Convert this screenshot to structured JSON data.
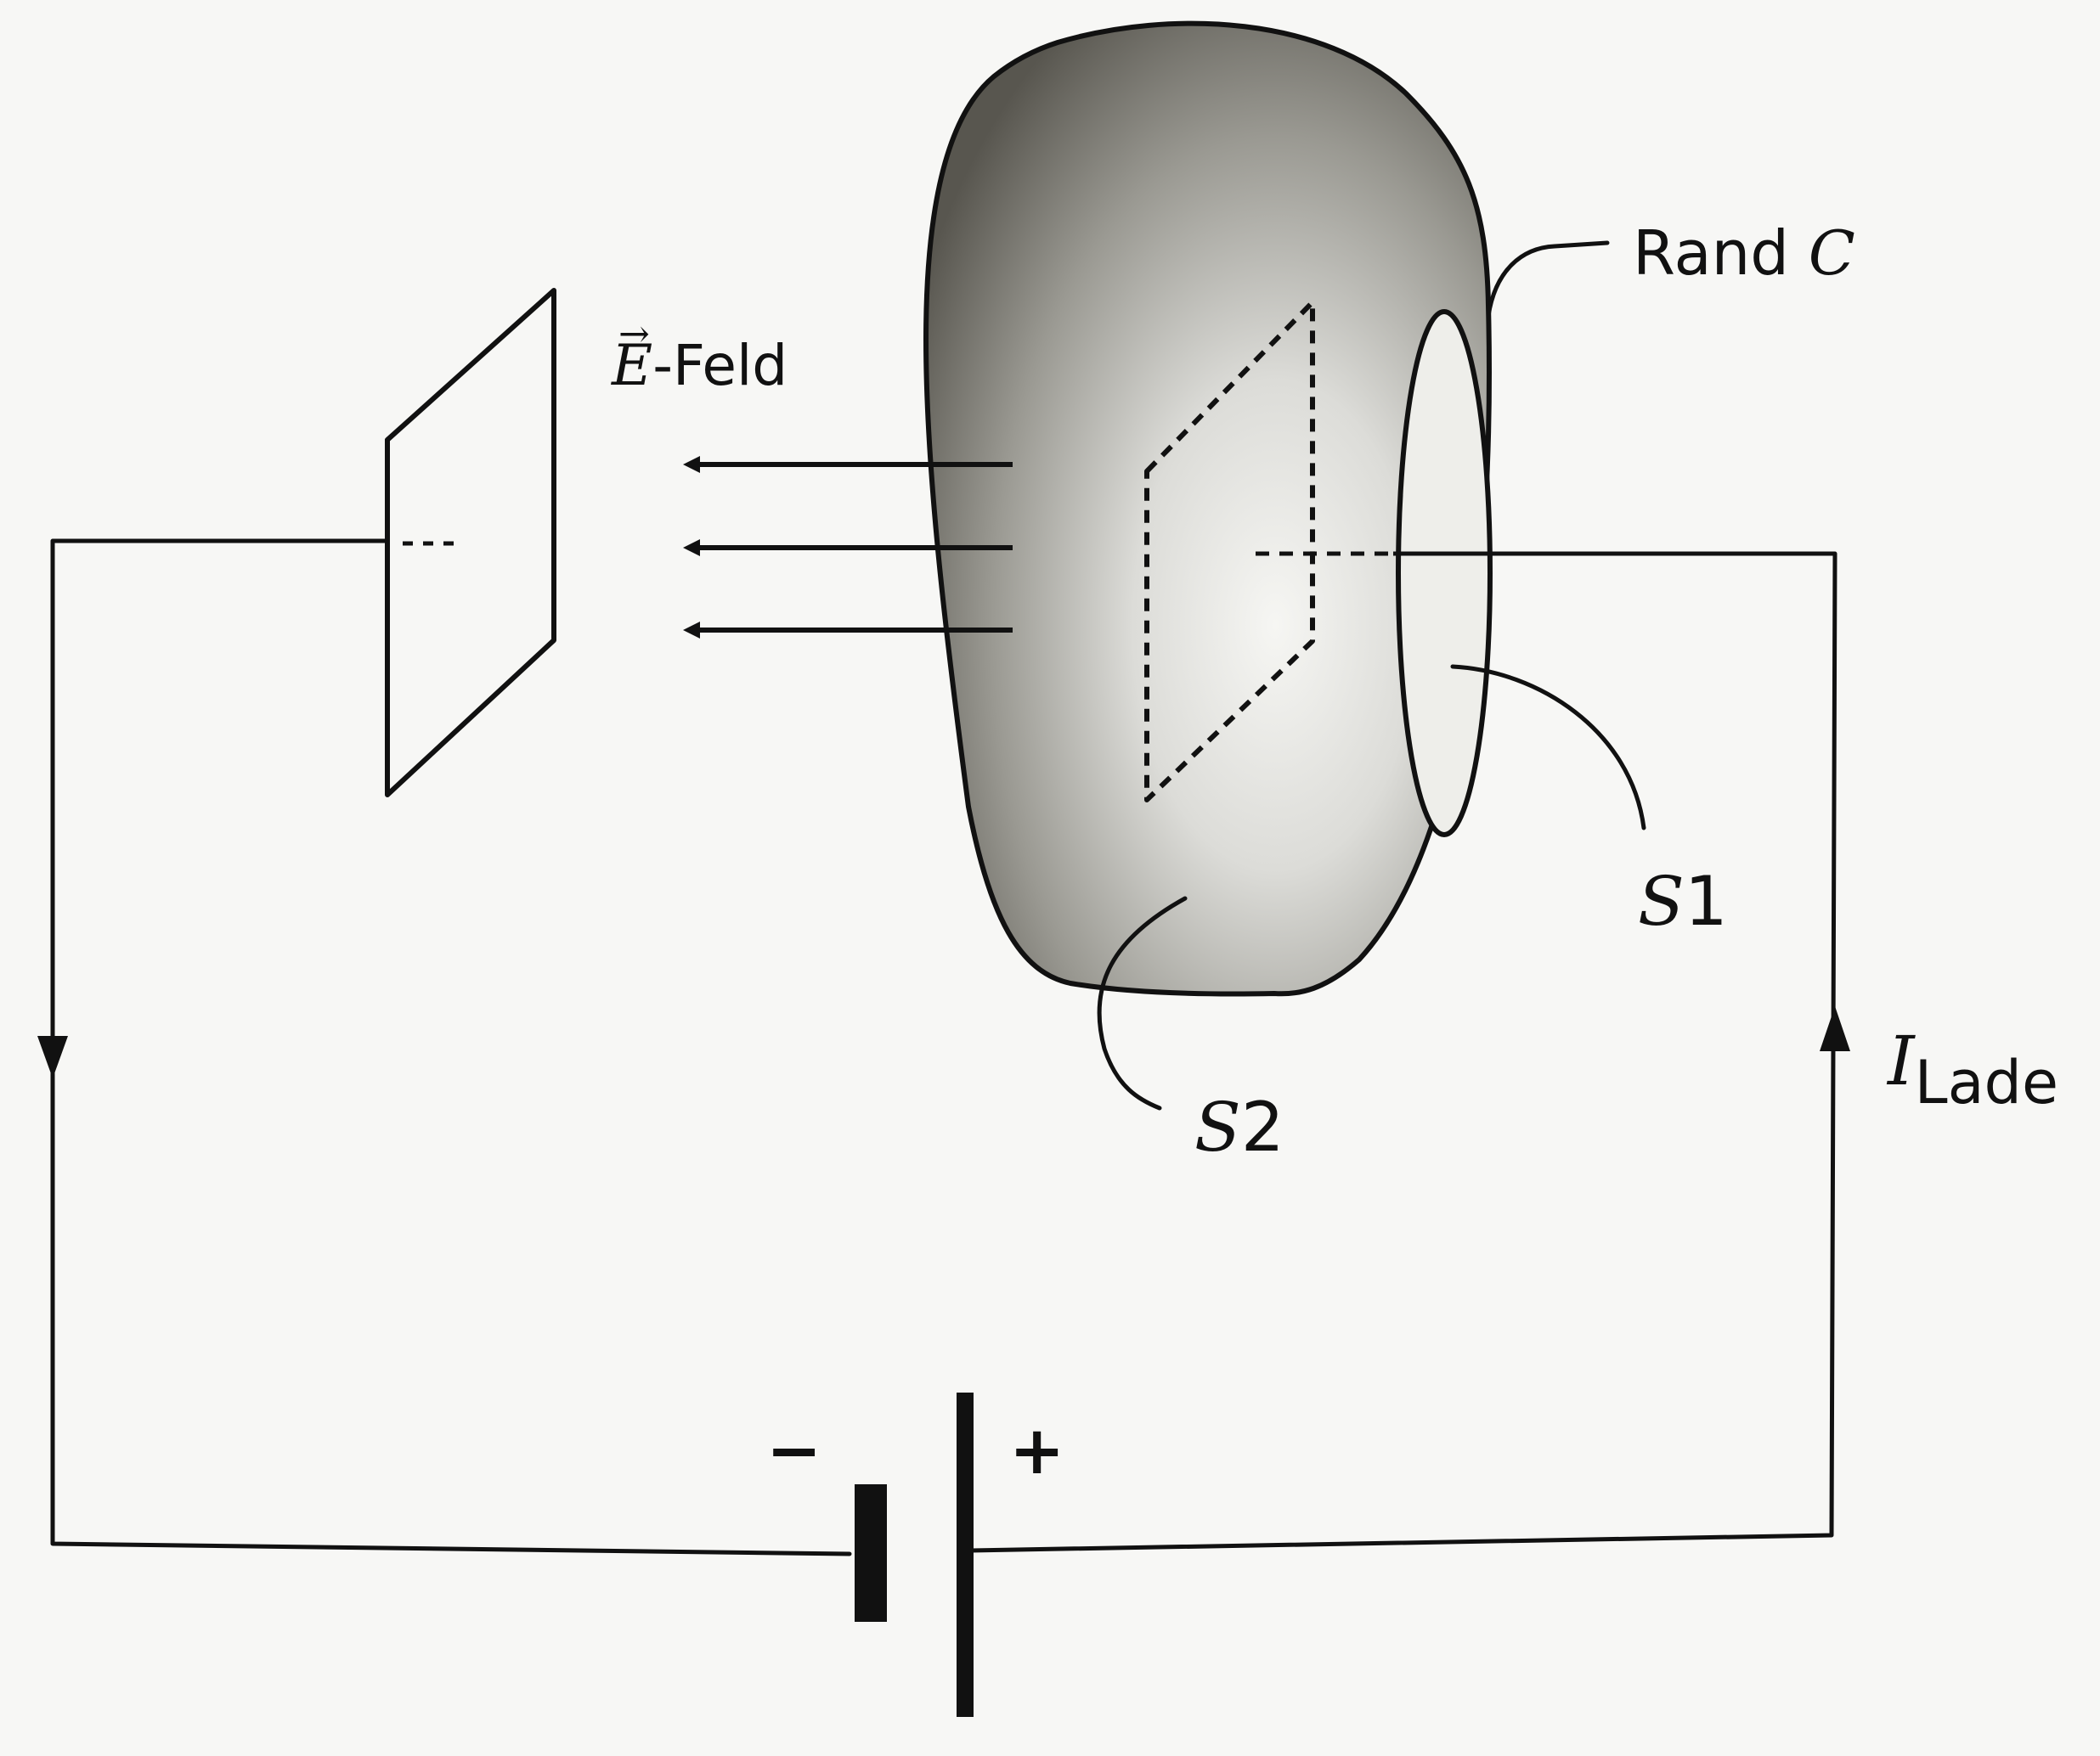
{
  "labels": {
    "e_symbol": "E",
    "e_vector_arrow": "→",
    "e_suffix": "-Feld",
    "rand_word": "Rand",
    "rand_symbol": "C",
    "s1_symbol": "S",
    "s1_index": "1",
    "s2_symbol": "S",
    "s2_index": "2",
    "current_symbol": "I",
    "current_subscript": "Lade",
    "minus_sign": "−",
    "plus_sign": "+"
  },
  "colors": {
    "line": "#111111",
    "background": "#f7f7f5",
    "surface_dark": "#58564f",
    "surface_light": "#f6f6f3",
    "s1_fill": "#eeeeea"
  }
}
